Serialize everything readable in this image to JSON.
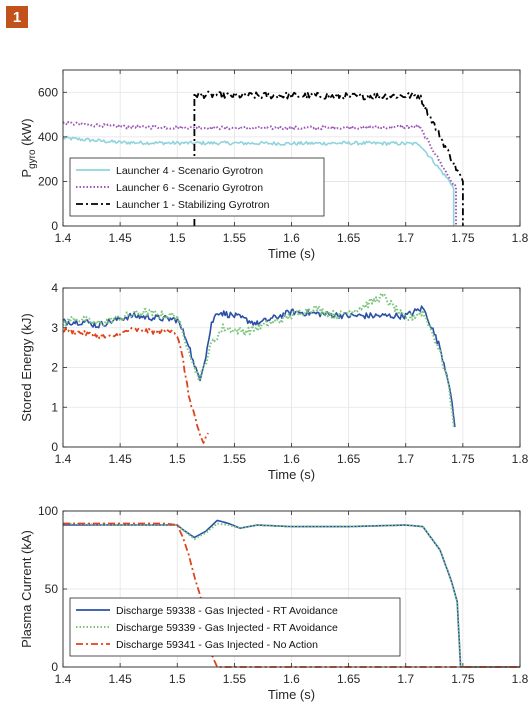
{
  "figure_label": "1",
  "chart_data": [
    {
      "type": "line",
      "xlabel": "Time (s)",
      "ylabel_main": "P",
      "ylabel_sub": "gyro",
      "ylabel_unit": " (kW)",
      "xlim": [
        1.4,
        1.8
      ],
      "ylim": [
        0,
        700
      ],
      "xticks": [
        "1.4",
        "1.45",
        "1.5",
        "1.55",
        "1.6",
        "1.65",
        "1.7",
        "1.75",
        "1.8"
      ],
      "yticks": [
        "0",
        "200",
        "400",
        "600"
      ],
      "yticks_values": [
        0,
        200,
        400,
        600
      ],
      "legend_position": "lower-left",
      "series": [
        {
          "name": "Launcher 4 - Scenario Gyrotron",
          "color": "#8fd4dd",
          "style": "solid",
          "noise": 8,
          "points": [
            [
              1.4,
              395
            ],
            [
              1.45,
              375
            ],
            [
              1.5,
              372
            ],
            [
              1.55,
              372
            ],
            [
              1.6,
              370
            ],
            [
              1.65,
              372
            ],
            [
              1.7,
              370
            ],
            [
              1.712,
              368
            ],
            [
              1.74,
              190
            ],
            [
              1.742,
              165
            ],
            [
              1.742,
              0
            ]
          ]
        },
        {
          "name": "Launcher 6 - Scenario Gyrotron",
          "color": "#9b59b6",
          "style": "dotted",
          "noise": 7,
          "points": [
            [
              1.4,
              462
            ],
            [
              1.45,
              445
            ],
            [
              1.5,
              442
            ],
            [
              1.55,
              440
            ],
            [
              1.6,
              440
            ],
            [
              1.65,
              442
            ],
            [
              1.7,
              445
            ],
            [
              1.712,
              445
            ],
            [
              1.74,
              200
            ],
            [
              1.744,
              175
            ],
            [
              1.744,
              0
            ]
          ]
        },
        {
          "name": "Launcher 1 - Stabilizing Gyrotron",
          "color": "#000000",
          "style": "dashdot",
          "noise": 15,
          "points": [
            [
              1.515,
              0
            ],
            [
              1.515,
              590
            ],
            [
              1.55,
              585
            ],
            [
              1.6,
              585
            ],
            [
              1.65,
              582
            ],
            [
              1.7,
              585
            ],
            [
              1.712,
              585
            ],
            [
              1.75,
              200
            ],
            [
              1.75,
              0
            ]
          ]
        }
      ]
    },
    {
      "type": "line",
      "xlabel": "Time (s)",
      "ylabel": "Stored Energy (kJ)",
      "xlim": [
        1.4,
        1.8
      ],
      "ylim": [
        0,
        4
      ],
      "xticks": [
        "1.4",
        "1.45",
        "1.5",
        "1.55",
        "1.6",
        "1.65",
        "1.7",
        "1.75",
        "1.8"
      ],
      "yticks": [
        "0",
        "1",
        "2",
        "3",
        "4"
      ],
      "yticks_values": [
        0,
        1,
        2,
        3,
        4
      ],
      "series": [
        {
          "name": "Discharge 59338 - Gas Injected - RT Avoidance",
          "color": "#2b4fa8",
          "style": "solid",
          "noise": 0.08,
          "points": [
            [
              1.4,
              3.15
            ],
            [
              1.42,
              3.15
            ],
            [
              1.43,
              3.05
            ],
            [
              1.44,
              3.15
            ],
            [
              1.46,
              3.3
            ],
            [
              1.48,
              3.25
            ],
            [
              1.5,
              3.2
            ],
            [
              1.505,
              2.9
            ],
            [
              1.51,
              2.6
            ],
            [
              1.515,
              2.0
            ],
            [
              1.52,
              1.75
            ],
            [
              1.525,
              2.3
            ],
            [
              1.53,
              3.1
            ],
            [
              1.535,
              3.4
            ],
            [
              1.55,
              3.3
            ],
            [
              1.57,
              3.1
            ],
            [
              1.6,
              3.4
            ],
            [
              1.65,
              3.3
            ],
            [
              1.7,
              3.3
            ],
            [
              1.715,
              3.5
            ],
            [
              1.72,
              3.2
            ],
            [
              1.73,
              2.5
            ],
            [
              1.738,
              1.6
            ],
            [
              1.743,
              0.5
            ]
          ]
        },
        {
          "name": "Discharge 59339 - Gas Injected - RT Avoidance",
          "color": "#7cc47b",
          "style": "dotted",
          "noise": 0.1,
          "points": [
            [
              1.4,
              3.1
            ],
            [
              1.41,
              3.25
            ],
            [
              1.43,
              3.1
            ],
            [
              1.45,
              3.25
            ],
            [
              1.47,
              3.4
            ],
            [
              1.49,
              3.3
            ],
            [
              1.5,
              3.3
            ],
            [
              1.505,
              2.8
            ],
            [
              1.51,
              2.5
            ],
            [
              1.515,
              2.0
            ],
            [
              1.52,
              1.7
            ],
            [
              1.53,
              2.6
            ],
            [
              1.54,
              3.0
            ],
            [
              1.56,
              2.9
            ],
            [
              1.58,
              3.1
            ],
            [
              1.6,
              3.3
            ],
            [
              1.62,
              3.5
            ],
            [
              1.64,
              3.3
            ],
            [
              1.66,
              3.5
            ],
            [
              1.68,
              3.8
            ],
            [
              1.7,
              3.2
            ],
            [
              1.715,
              3.4
            ],
            [
              1.72,
              3.1
            ],
            [
              1.73,
              2.4
            ],
            [
              1.738,
              1.5
            ],
            [
              1.742,
              0.5
            ]
          ]
        },
        {
          "name": "Discharge 59341 - Gas Injected - No Action",
          "color": "#e0431b",
          "style": "dashdot",
          "noise": 0.06,
          "points": [
            [
              1.4,
              2.95
            ],
            [
              1.42,
              2.85
            ],
            [
              1.44,
              2.75
            ],
            [
              1.46,
              2.95
            ],
            [
              1.48,
              2.9
            ],
            [
              1.495,
              2.95
            ],
            [
              1.5,
              2.8
            ],
            [
              1.505,
              2.2
            ],
            [
              1.51,
              1.3
            ],
            [
              1.515,
              0.8
            ],
            [
              1.52,
              0.3
            ],
            [
              1.523,
              0.1
            ],
            [
              1.525,
              0.25
            ],
            [
              1.527,
              0.35
            ]
          ]
        }
      ]
    },
    {
      "type": "line",
      "xlabel": "Time (s)",
      "ylabel": "Plasma Current (kA)",
      "xlim": [
        1.4,
        1.8
      ],
      "ylim": [
        0,
        100
      ],
      "xticks": [
        "1.4",
        "1.45",
        "1.5",
        "1.55",
        "1.6",
        "1.65",
        "1.7",
        "1.75",
        "1.8"
      ],
      "yticks": [
        "0",
        "50",
        "100"
      ],
      "yticks_values": [
        0,
        50,
        100
      ],
      "legend_position": "lower-left",
      "series": [
        {
          "name": "Discharge 59338 - Gas Injected - RT Avoidance",
          "color": "#2b4fa8",
          "style": "solid",
          "noise": 0,
          "points": [
            [
              1.4,
              91
            ],
            [
              1.45,
              91
            ],
            [
              1.5,
              91
            ],
            [
              1.505,
              88
            ],
            [
              1.515,
              83
            ],
            [
              1.525,
              87
            ],
            [
              1.535,
              94
            ],
            [
              1.545,
              92
            ],
            [
              1.555,
              89
            ],
            [
              1.57,
              91
            ],
            [
              1.6,
              90
            ],
            [
              1.65,
              90
            ],
            [
              1.7,
              91
            ],
            [
              1.715,
              90
            ],
            [
              1.73,
              75
            ],
            [
              1.74,
              55
            ],
            [
              1.745,
              42
            ],
            [
              1.748,
              0
            ],
            [
              1.8,
              0
            ]
          ]
        },
        {
          "name": "Discharge 59339 - Gas Injected - RT Avoidance",
          "color": "#7cc47b",
          "style": "dotted",
          "noise": 0,
          "points": [
            [
              1.4,
              92
            ],
            [
              1.45,
              91
            ],
            [
              1.5,
              91
            ],
            [
              1.505,
              88
            ],
            [
              1.515,
              82
            ],
            [
              1.525,
              86
            ],
            [
              1.535,
              92
            ],
            [
              1.545,
              91
            ],
            [
              1.555,
              89
            ],
            [
              1.57,
              91
            ],
            [
              1.6,
              90
            ],
            [
              1.65,
              90
            ],
            [
              1.7,
              91
            ],
            [
              1.715,
              90
            ],
            [
              1.73,
              75
            ],
            [
              1.74,
              55
            ],
            [
              1.745,
              42
            ],
            [
              1.748,
              0
            ],
            [
              1.8,
              0
            ]
          ]
        },
        {
          "name": "Discharge 59341 - Gas Injected - No Action",
          "color": "#e0431b",
          "style": "dashdot",
          "noise": 0,
          "points": [
            [
              1.4,
              92
            ],
            [
              1.45,
              92
            ],
            [
              1.49,
              92
            ],
            [
              1.5,
              91
            ],
            [
              1.505,
              83
            ],
            [
              1.51,
              72
            ],
            [
              1.515,
              58
            ],
            [
              1.52,
              46
            ],
            [
              1.525,
              32
            ],
            [
              1.53,
              8
            ],
            [
              1.535,
              0
            ],
            [
              1.8,
              0
            ]
          ]
        }
      ]
    }
  ]
}
